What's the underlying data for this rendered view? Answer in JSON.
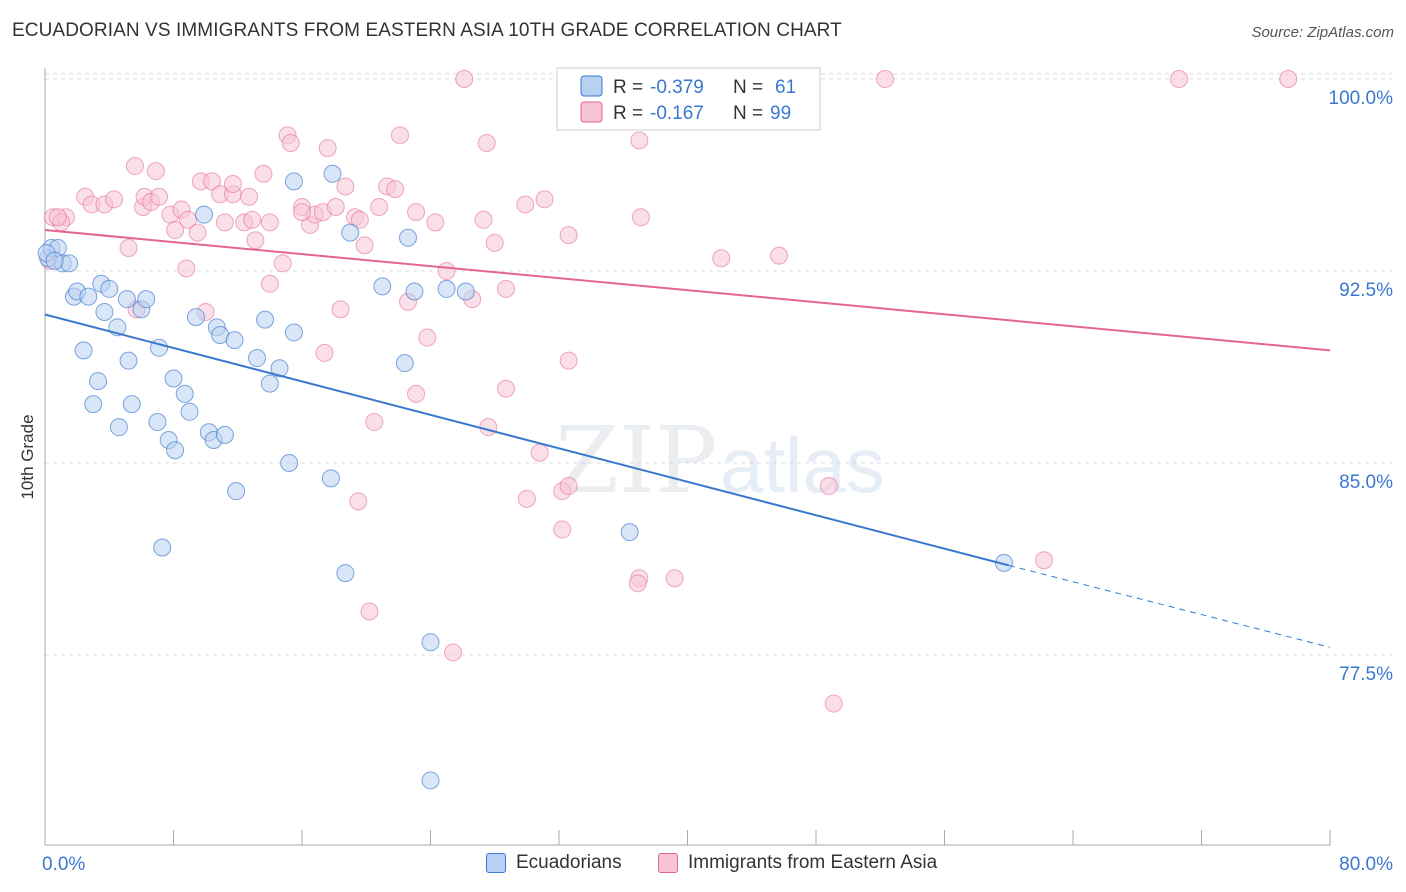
{
  "title": "ECUADORIAN VS IMMIGRANTS FROM EASTERN ASIA 10TH GRADE CORRELATION CHART",
  "source": "Source: ZipAtlas.com",
  "watermark": {
    "zip": "ZIP",
    "atlas": "atlas"
  },
  "colors": {
    "ecuadorian": "#3a78d0",
    "ecuadorian_fill": "#b9d1f0",
    "immigrant": "#e36590",
    "immigrant_fill": "#f7c4d5",
    "value_text": "#3a78d0",
    "grid": "#dddddd",
    "axis": "#888888"
  },
  "stats": [
    {
      "r_label": "R =",
      "r_value": "-0.379",
      "n_label": "N =",
      "n_value": "61"
    },
    {
      "r_label": "R =",
      "r_value": "-0.167",
      "n_label": "N =",
      "n_value": "99"
    }
  ],
  "chart_data": {
    "type": "scatter",
    "title": "ECUADORIAN VS IMMIGRANTS FROM EASTERN ASIA 10TH GRADE CORRELATION CHART",
    "xlabel": "",
    "ylabel": "10th Grade",
    "xlim": [
      0,
      80
    ],
    "ylim": [
      72,
      101
    ],
    "x_tick_labels": [
      "0.0%",
      "80.0%"
    ],
    "y_ticks": [
      100.0,
      92.5,
      85.0,
      77.5
    ],
    "y_tick_labels": [
      "100.0%",
      "92.5%",
      "85.0%",
      "77.5%"
    ],
    "grid": true,
    "legend_position": "bottom",
    "series": [
      {
        "name": "Ecuadorians",
        "trend": {
          "x0": 0,
          "y0": 90.8,
          "x1": 60,
          "y1": 81.0,
          "dash_to_x": 80,
          "dash_to_y": 77.8
        },
        "points": [
          [
            0.2,
            93.0
          ],
          [
            0.4,
            93.4
          ],
          [
            0.8,
            93.4
          ],
          [
            1.1,
            92.8
          ],
          [
            1.5,
            92.8
          ],
          [
            1.8,
            91.5
          ],
          [
            2.0,
            91.7
          ],
          [
            2.7,
            91.5
          ],
          [
            3.5,
            92.0
          ],
          [
            4.0,
            91.8
          ],
          [
            3.7,
            90.9
          ],
          [
            4.5,
            90.3
          ],
          [
            5.1,
            91.4
          ],
          [
            6.0,
            91.0
          ],
          [
            6.3,
            91.4
          ],
          [
            2.4,
            89.4
          ],
          [
            3.3,
            88.2
          ],
          [
            5.2,
            89.0
          ],
          [
            7.1,
            89.5
          ],
          [
            8.0,
            88.3
          ],
          [
            3.0,
            87.3
          ],
          [
            5.4,
            87.3
          ],
          [
            7.0,
            86.6
          ],
          [
            8.7,
            87.7
          ],
          [
            9.0,
            87.0
          ],
          [
            4.6,
            86.4
          ],
          [
            7.7,
            85.9
          ],
          [
            8.1,
            85.5
          ],
          [
            10.2,
            86.2
          ],
          [
            10.5,
            85.9
          ],
          [
            11.2,
            86.1
          ],
          [
            9.4,
            90.7
          ],
          [
            10.7,
            90.3
          ],
          [
            10.9,
            90.0
          ],
          [
            11.8,
            89.8
          ],
          [
            13.2,
            89.1
          ],
          [
            13.7,
            90.6
          ],
          [
            14.0,
            88.1
          ],
          [
            14.6,
            88.7
          ],
          [
            15.5,
            90.1
          ],
          [
            15.2,
            85.0
          ],
          [
            17.8,
            84.4
          ],
          [
            11.9,
            83.9
          ],
          [
            7.3,
            81.7
          ],
          [
            18.7,
            80.7
          ],
          [
            9.9,
            94.7
          ],
          [
            15.5,
            96.0
          ],
          [
            17.9,
            96.3
          ],
          [
            19.0,
            94.0
          ],
          [
            21.0,
            91.9
          ],
          [
            22.6,
            93.8
          ],
          [
            22.4,
            88.9
          ],
          [
            23.0,
            91.7
          ],
          [
            25.0,
            91.8
          ],
          [
            26.2,
            91.7
          ],
          [
            36.4,
            82.3
          ],
          [
            59.7,
            81.1
          ],
          [
            24.0,
            78.0
          ],
          [
            24.0,
            72.6
          ],
          [
            0.1,
            93.2
          ],
          [
            0.6,
            92.9
          ]
        ]
      },
      {
        "name": "Immigrants from Eastern Asia",
        "trend": {
          "x0": 0,
          "y0": 94.1,
          "x1": 80,
          "y1": 89.4
        },
        "points": [
          [
            0.3,
            92.9
          ],
          [
            0.5,
            94.6
          ],
          [
            1.3,
            94.6
          ],
          [
            2.5,
            95.4
          ],
          [
            2.9,
            95.1
          ],
          [
            3.7,
            95.1
          ],
          [
            4.3,
            95.3
          ],
          [
            5.2,
            93.4
          ],
          [
            5.6,
            96.6
          ],
          [
            6.1,
            95.0
          ],
          [
            6.2,
            95.4
          ],
          [
            6.6,
            95.2
          ],
          [
            6.9,
            96.4
          ],
          [
            7.1,
            95.4
          ],
          [
            7.8,
            94.7
          ],
          [
            8.1,
            94.1
          ],
          [
            8.5,
            94.9
          ],
          [
            8.9,
            94.5
          ],
          [
            9.5,
            94.0
          ],
          [
            9.7,
            96.0
          ],
          [
            10.4,
            96.0
          ],
          [
            10.9,
            95.5
          ],
          [
            11.2,
            94.4
          ],
          [
            11.7,
            95.5
          ],
          [
            12.4,
            94.4
          ],
          [
            12.7,
            95.4
          ],
          [
            13.1,
            93.7
          ],
          [
            13.6,
            96.3
          ],
          [
            14.0,
            94.4
          ],
          [
            14.8,
            92.8
          ],
          [
            15.1,
            97.8
          ],
          [
            15.3,
            97.5
          ],
          [
            16.0,
            95.0
          ],
          [
            16.5,
            94.3
          ],
          [
            16.8,
            94.7
          ],
          [
            17.3,
            94.8
          ],
          [
            17.6,
            97.3
          ],
          [
            18.1,
            95.0
          ],
          [
            18.7,
            95.8
          ],
          [
            19.3,
            94.6
          ],
          [
            19.9,
            93.5
          ],
          [
            20.8,
            95.0
          ],
          [
            21.3,
            95.8
          ],
          [
            21.8,
            95.7
          ],
          [
            22.1,
            97.8
          ],
          [
            23.1,
            94.8
          ],
          [
            24.3,
            94.4
          ],
          [
            25.0,
            92.5
          ],
          [
            26.6,
            91.4
          ],
          [
            27.3,
            94.5
          ],
          [
            28.0,
            93.6
          ],
          [
            28.7,
            91.8
          ],
          [
            29.9,
            95.1
          ],
          [
            31.1,
            95.3
          ],
          [
            32.6,
            93.9
          ],
          [
            37.0,
            97.6
          ],
          [
            37.1,
            94.6
          ],
          [
            42.1,
            93.0
          ],
          [
            45.7,
            93.1
          ],
          [
            26.1,
            100.0
          ],
          [
            40.1,
            100.0
          ],
          [
            41.4,
            100.0
          ],
          [
            52.3,
            100.0
          ],
          [
            70.6,
            100.0
          ],
          [
            77.4,
            100.0
          ],
          [
            27.5,
            97.5
          ],
          [
            8.8,
            92.6
          ],
          [
            10.0,
            90.9
          ],
          [
            5.7,
            91.0
          ],
          [
            14.0,
            92.0
          ],
          [
            18.4,
            91.0
          ],
          [
            17.4,
            89.3
          ],
          [
            22.6,
            91.3
          ],
          [
            23.8,
            89.9
          ],
          [
            23.1,
            87.7
          ],
          [
            20.5,
            86.6
          ],
          [
            27.6,
            86.4
          ],
          [
            28.7,
            87.9
          ],
          [
            32.6,
            89.0
          ],
          [
            30.8,
            85.4
          ],
          [
            30.0,
            83.6
          ],
          [
            32.2,
            83.9
          ],
          [
            32.6,
            84.1
          ],
          [
            32.2,
            82.4
          ],
          [
            37.0,
            80.5
          ],
          [
            36.9,
            80.3
          ],
          [
            39.2,
            80.5
          ],
          [
            19.5,
            83.5
          ],
          [
            20.2,
            79.2
          ],
          [
            25.4,
            77.6
          ],
          [
            48.8,
            84.1
          ],
          [
            62.2,
            81.2
          ],
          [
            49.1,
            75.6
          ],
          [
            1.0,
            94.4
          ],
          [
            0.8,
            94.6
          ],
          [
            11.7,
            95.9
          ],
          [
            16.0,
            94.8
          ],
          [
            12.9,
            94.5
          ],
          [
            19.6,
            94.5
          ]
        ]
      }
    ]
  },
  "legend": {
    "items": [
      {
        "label": "Ecuadorians"
      },
      {
        "label": "Immigrants from Eastern Asia"
      }
    ]
  }
}
